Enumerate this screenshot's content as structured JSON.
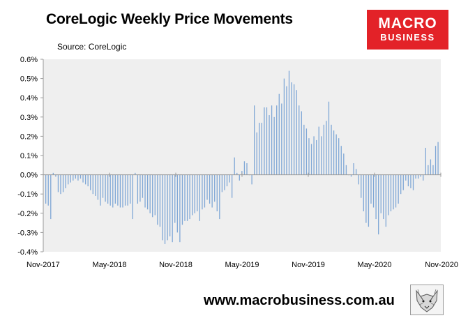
{
  "title": "CoreLogic Weekly Price Movements",
  "source": "Source: CoreLogic",
  "logo": {
    "line1": "MACRO",
    "line2": "BUSINESS"
  },
  "footer": {
    "url": "www.macrobusiness.com.au"
  },
  "colors": {
    "bar": "#7fa7d6",
    "plot_bg": "#efefef",
    "axis": "#9a9a9a",
    "logo_bg": "#e32228"
  },
  "chart_data": {
    "type": "bar",
    "title": "CoreLogic Weekly Price Movements",
    "xlabel": "",
    "ylabel": "",
    "ylim": [
      -0.4,
      0.6
    ],
    "yticks": [
      -0.4,
      -0.3,
      -0.2,
      -0.1,
      0.0,
      0.1,
      0.2,
      0.3,
      0.4,
      0.5,
      0.6
    ],
    "ytick_labels": [
      "-0.4%",
      "-0.3%",
      "-0.2%",
      "-0.1%",
      "0.0%",
      "0.1%",
      "0.2%",
      "0.3%",
      "0.4%",
      "0.5%",
      "0.6%"
    ],
    "xtick_labels": [
      "Nov-2017",
      "May-2018",
      "Nov-2018",
      "May-2019",
      "Nov-2019",
      "May-2020",
      "Nov-2020"
    ],
    "grid": false,
    "legend": "none",
    "x_start": "2017-11",
    "x_end": "2020-11",
    "series": [
      {
        "values": [
          -0.15,
          -0.16,
          -0.23,
          0.01,
          -0.01,
          -0.09,
          -0.1,
          -0.09,
          -0.07,
          -0.05,
          -0.04,
          -0.03,
          -0.02,
          -0.03,
          -0.02,
          -0.04,
          -0.05,
          -0.06,
          -0.08,
          -0.1,
          -0.11,
          -0.13,
          -0.16,
          -0.12,
          -0.14,
          -0.15,
          -0.16,
          -0.17,
          -0.15,
          -0.16,
          -0.17,
          -0.17,
          -0.16,
          -0.16,
          -0.15,
          -0.23,
          0.01,
          -0.15,
          -0.14,
          -0.12,
          -0.17,
          -0.18,
          -0.2,
          -0.22,
          -0.21,
          -0.26,
          -0.27,
          -0.34,
          -0.36,
          -0.34,
          -0.32,
          -0.35,
          -0.25,
          -0.3,
          -0.35,
          -0.26,
          -0.24,
          -0.24,
          -0.23,
          -0.21,
          -0.2,
          -0.19,
          -0.24,
          -0.18,
          -0.17,
          -0.13,
          -0.15,
          -0.17,
          -0.14,
          -0.19,
          -0.23,
          -0.09,
          -0.08,
          -0.06,
          -0.04,
          -0.12,
          0.09,
          0.01,
          -0.03,
          0.02,
          0.07,
          0.06,
          0.0,
          -0.05,
          0.36,
          0.22,
          0.27,
          0.27,
          0.35,
          0.35,
          0.31,
          0.36,
          0.3,
          0.36,
          0.42,
          0.37,
          0.5,
          0.46,
          0.54,
          0.48,
          0.47,
          0.44,
          0.36,
          0.33,
          0.26,
          0.24,
          0.19,
          0.16,
          0.2,
          0.18,
          0.25,
          0.2,
          0.26,
          0.28,
          0.38,
          0.26,
          0.23,
          0.21,
          0.19,
          0.15,
          0.11,
          0.05,
          0.0,
          -0.01,
          0.06,
          0.03,
          -0.05,
          -0.12,
          -0.19,
          -0.25,
          -0.27,
          -0.15,
          -0.17,
          -0.23,
          -0.31,
          -0.2,
          -0.23,
          -0.27,
          -0.21,
          -0.19,
          -0.18,
          -0.17,
          -0.15,
          -0.1,
          -0.08,
          -0.03,
          -0.06,
          -0.07,
          -0.08,
          -0.02,
          -0.02,
          -0.01,
          -0.03,
          0.14,
          0.05,
          0.08,
          0.05,
          0.15,
          0.17
        ]
      }
    ]
  }
}
